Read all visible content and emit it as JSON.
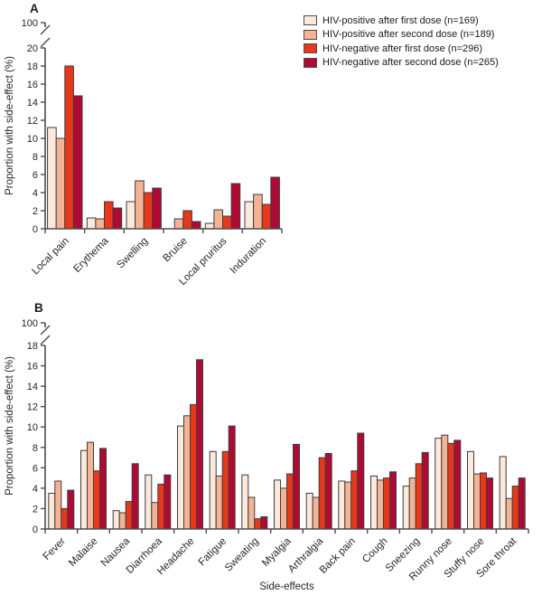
{
  "figure": {
    "background": "#ffffff",
    "panel_a_letter": "A",
    "panel_b_letter": "B"
  },
  "style": {
    "axis_color": "#4d4d4d",
    "text_color": "#262626",
    "bar_stroke": "#3d3d3d",
    "series_colors": [
      "#fbe9dc",
      "#f4b394",
      "#e8381c",
      "#af0a34"
    ]
  },
  "legend": {
    "items": [
      {
        "label": "HIV-positive after first dose (n=169)",
        "color": "#fbe9dc"
      },
      {
        "label": "HIV-positive after second dose (n=189)",
        "color": "#f4b394"
      },
      {
        "label": "HIV-negative after first dose (n=296)",
        "color": "#e8381c"
      },
      {
        "label": "HIV-negative after second dose (n=265)",
        "color": "#af0a34"
      }
    ]
  },
  "chart_data": [
    {
      "type": "bar",
      "panel": "A",
      "ylabel": "Proportion with side-effect (%)",
      "xlabel": "",
      "ylim": [
        0,
        20
      ],
      "ytick_step": 2,
      "broken_axis_top_label": "100",
      "grid": false,
      "legend_position": "top-right",
      "categories": [
        "Local pain",
        "Erythema",
        "Swelling",
        "Bruise",
        "Local pruritus",
        "Induration"
      ],
      "series": [
        {
          "name": "HIV-positive after first dose (n=169)",
          "values": [
            11.2,
            1.2,
            3.0,
            0,
            0.6,
            3.0
          ]
        },
        {
          "name": "HIV-positive after second dose (n=189)",
          "values": [
            10.0,
            1.1,
            5.3,
            1.1,
            2.1,
            3.8
          ]
        },
        {
          "name": "HIV-negative after first dose (n=296)",
          "values": [
            18.0,
            3.0,
            4.0,
            2.0,
            1.4,
            2.7
          ]
        },
        {
          "name": "HIV-negative after second dose (n=265)",
          "values": [
            14.7,
            2.3,
            4.5,
            0.8,
            5.0,
            5.7
          ]
        }
      ]
    },
    {
      "type": "bar",
      "panel": "B",
      "ylabel": "Proportion with side-effect (%)",
      "xlabel": "Side-effects",
      "ylim": [
        0,
        18
      ],
      "ytick_step": 2,
      "broken_axis_top_label": "100",
      "grid": false,
      "categories": [
        "Fever",
        "Malaise",
        "Nausea",
        "Diarrhoea",
        "Headache",
        "Fatigue",
        "Sweating",
        "Myalgia",
        "Arthralgia",
        "Back pain",
        "Cough",
        "Sneezing",
        "Runny nose",
        "Stuffy nose",
        "Sore throat"
      ],
      "series": [
        {
          "name": "HIV-positive after first dose (n=169)",
          "values": [
            3.5,
            7.7,
            1.8,
            5.3,
            10.1,
            7.6,
            5.3,
            4.8,
            3.5,
            4.7,
            5.2,
            4.2,
            8.9,
            7.6,
            7.1
          ]
        },
        {
          "name": "HIV-positive after second dose (n=189)",
          "values": [
            4.7,
            8.5,
            1.6,
            2.6,
            11.1,
            5.2,
            3.1,
            4.0,
            3.1,
            4.6,
            4.8,
            5.0,
            9.2,
            5.4,
            3.0
          ]
        },
        {
          "name": "HIV-negative after first dose (n=296)",
          "values": [
            2.0,
            5.7,
            2.7,
            4.4,
            12.2,
            7.6,
            1.0,
            5.4,
            7.0,
            5.7,
            5.0,
            6.4,
            8.4,
            5.5,
            4.2
          ]
        },
        {
          "name": "HIV-negative after second dose (n=265)",
          "values": [
            3.8,
            7.9,
            6.4,
            5.3,
            16.6,
            10.1,
            1.2,
            8.3,
            7.4,
            9.4,
            5.6,
            7.5,
            8.7,
            5.0,
            5.0
          ]
        }
      ]
    }
  ]
}
